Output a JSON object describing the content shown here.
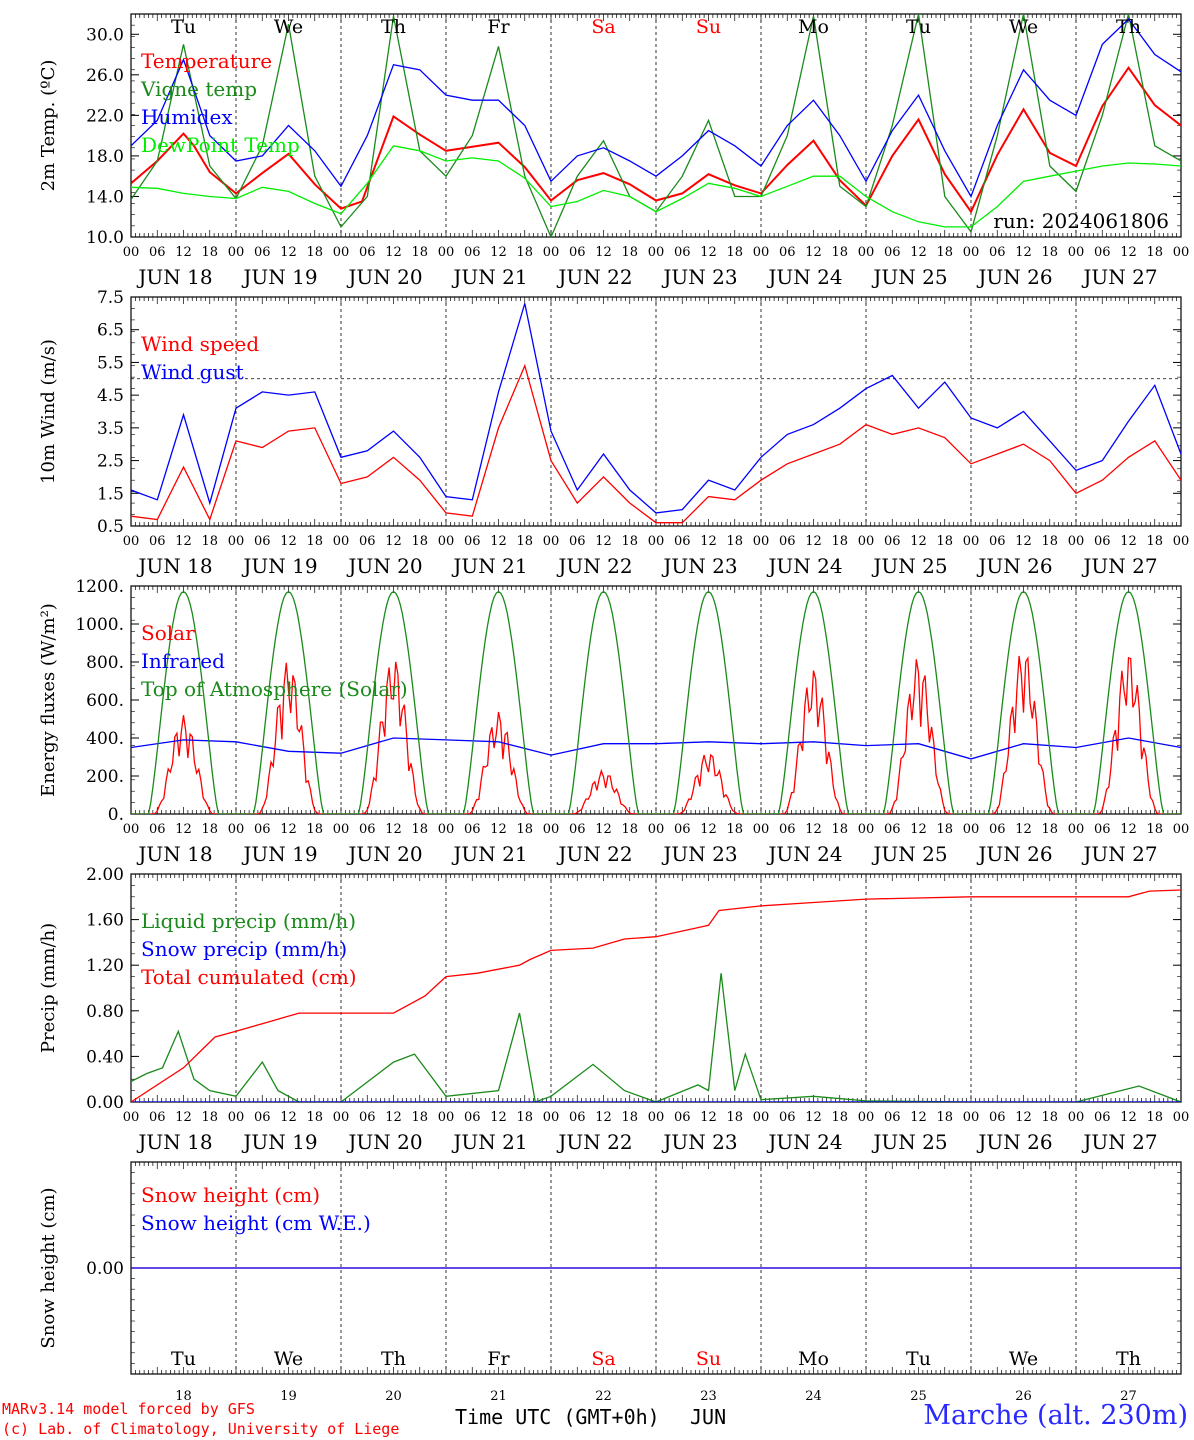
{
  "figure": {
    "footer": {
      "credit_line1": "MARv3.14 model forced by GFS",
      "credit_line2": "(c) Lab. of Climatology, University of Liege",
      "time_axis_label": "Time UTC (GMT+0h)",
      "month_label": "JUN",
      "station": "Marche (alt. 230m)"
    },
    "hour_ticks": [
      "00",
      "06",
      "12",
      "18"
    ],
    "final_tick": "00",
    "dates": [
      "JUN 18",
      "JUN 19",
      "JUN 20",
      "JUN 21",
      "JUN 22",
      "JUN 23",
      "JUN 24",
      "JUN 25",
      "JUN 26",
      "JUN 27"
    ],
    "day_numbers": [
      "18",
      "19",
      "20",
      "21",
      "22",
      "23",
      "24",
      "25",
      "26",
      "27"
    ],
    "weekdays": [
      {
        "label": "Tu",
        "color": "#000000"
      },
      {
        "label": "We",
        "color": "#000000"
      },
      {
        "label": "Th",
        "color": "#000000"
      },
      {
        "label": "Fr",
        "color": "#000000"
      },
      {
        "label": "Sa",
        "color": "#ff0000"
      },
      {
        "label": "Su",
        "color": "#ff0000"
      },
      {
        "label": "Mo",
        "color": "#000000"
      },
      {
        "label": "Tu",
        "color": "#000000"
      },
      {
        "label": "We",
        "color": "#000000"
      },
      {
        "label": "Th",
        "color": "#000000"
      }
    ]
  },
  "chart_data": [
    {
      "type": "line",
      "ylabel": "2m Temp. (ºC)",
      "ylim": [
        10.0,
        32.0
      ],
      "yticks": [
        "10.0",
        "14.0",
        "18.0",
        "22.0",
        "26.0",
        "30.0"
      ],
      "x_unit": "days since JUN 18 00 UTC",
      "xlim": [
        0,
        10
      ],
      "annotation": "run: 2024061806",
      "series": [
        {
          "name": "Temperature",
          "color": "#ff0000",
          "x": [
            0,
            0.25,
            0.5,
            0.6,
            0.75,
            1.0,
            1.25,
            1.5,
            1.75,
            2.0,
            2.2,
            2.5,
            2.75,
            3.0,
            3.25,
            3.5,
            3.75,
            4.0,
            4.25,
            4.5,
            4.75,
            5.0,
            5.25,
            5.5,
            5.75,
            6.0,
            6.25,
            6.5,
            6.75,
            7.0,
            7.25,
            7.5,
            7.75,
            8.0,
            8.25,
            8.5,
            8.75,
            9.0,
            9.25,
            9.5,
            9.75,
            10.0
          ],
          "y": [
            15.3,
            17.5,
            20.2,
            19.0,
            16.4,
            14.3,
            16.3,
            18.2,
            15.2,
            12.8,
            13.5,
            21.9,
            20.1,
            18.5,
            18.9,
            19.3,
            16.9,
            13.6,
            15.6,
            16.3,
            15.2,
            13.6,
            14.3,
            16.2,
            15.1,
            14.3,
            17.1,
            19.5,
            15.6,
            13.1,
            18.0,
            21.6,
            16.2,
            12.5,
            18.1,
            22.6,
            18.3,
            17.0,
            22.9,
            26.7,
            23.0,
            21.0
          ]
        },
        {
          "name": "Vigne temp",
          "color": "#1a8a1a",
          "x": [
            0,
            0.25,
            0.5,
            0.75,
            1.0,
            1.25,
            1.5,
            1.75,
            2.0,
            2.25,
            2.5,
            2.75,
            3.0,
            3.25,
            3.5,
            3.75,
            4.0,
            4.25,
            4.5,
            4.75,
            5.0,
            5.25,
            5.5,
            5.75,
            6.0,
            6.25,
            6.5,
            6.75,
            7.0,
            7.25,
            7.5,
            7.75,
            8.0,
            8.25,
            8.5,
            8.75,
            9.0,
            9.25,
            9.5,
            9.75,
            10.0
          ],
          "y": [
            13.7,
            17.5,
            29.0,
            17.0,
            13.8,
            19.0,
            31.0,
            16.0,
            11.0,
            14.0,
            31.8,
            18.5,
            16.0,
            20.0,
            28.8,
            16.0,
            10.0,
            16.0,
            19.5,
            14.0,
            12.5,
            16.0,
            21.5,
            14.0,
            14.0,
            20.0,
            31.8,
            15.0,
            13.0,
            21.0,
            32.0,
            14.0,
            10.5,
            20.0,
            32.0,
            17.0,
            14.5,
            22.0,
            32.0,
            19.0,
            17.5
          ]
        },
        {
          "name": "Humidex",
          "color": "#0000ff",
          "x": [
            0,
            0.25,
            0.5,
            0.75,
            1.0,
            1.25,
            1.5,
            1.75,
            2.0,
            2.25,
            2.5,
            2.75,
            3.0,
            3.25,
            3.5,
            3.75,
            4.0,
            4.25,
            4.5,
            4.75,
            5.0,
            5.25,
            5.5,
            5.75,
            6.0,
            6.25,
            6.5,
            6.75,
            7.0,
            7.25,
            7.5,
            7.75,
            8.0,
            8.25,
            8.5,
            8.75,
            9.0,
            9.25,
            9.5,
            9.75,
            10.0
          ],
          "y": [
            19.0,
            21.5,
            27.5,
            20.0,
            17.5,
            18.0,
            21.0,
            18.5,
            15.0,
            20.0,
            27.0,
            26.5,
            24.0,
            23.5,
            23.5,
            21.0,
            15.5,
            18.0,
            18.8,
            17.5,
            16.0,
            18.0,
            20.5,
            19.0,
            17.0,
            21.0,
            23.5,
            20.0,
            15.5,
            20.5,
            24.0,
            18.5,
            14.0,
            21.0,
            26.5,
            23.5,
            22.0,
            29.0,
            31.5,
            28.0,
            26.3
          ]
        },
        {
          "name": "DewPoint Temp",
          "color": "#00ee00",
          "x": [
            0,
            0.25,
            0.5,
            0.75,
            1.0,
            1.25,
            1.5,
            1.75,
            2.0,
            2.25,
            2.5,
            2.75,
            3.0,
            3.25,
            3.5,
            3.75,
            4.0,
            4.25,
            4.5,
            4.75,
            5.0,
            5.25,
            5.5,
            5.75,
            6.0,
            6.25,
            6.5,
            6.75,
            7.0,
            7.25,
            7.5,
            7.75,
            8.0,
            8.25,
            8.5,
            8.75,
            9.0,
            9.25,
            9.5,
            9.75,
            10.0
          ],
          "y": [
            14.9,
            14.8,
            14.3,
            14.0,
            13.8,
            14.9,
            14.5,
            13.3,
            12.3,
            15.3,
            19.0,
            18.5,
            17.5,
            17.8,
            17.5,
            15.8,
            13.0,
            13.5,
            14.6,
            14.0,
            12.5,
            13.8,
            15.3,
            14.8,
            14.0,
            15.0,
            16.0,
            16.0,
            14.0,
            12.5,
            11.5,
            11.0,
            11.0,
            13.0,
            15.5,
            16.0,
            16.5,
            17.0,
            17.3,
            17.2,
            17.0
          ]
        }
      ]
    },
    {
      "type": "line",
      "ylabel": "10m Wind (m/s)",
      "ylim": [
        0.5,
        7.5
      ],
      "yticks": [
        "0.5",
        "1.5",
        "2.5",
        "3.5",
        "4.5",
        "5.5",
        "6.5",
        "7.5"
      ],
      "reference_line": 5.0,
      "series": [
        {
          "name": "Wind speed",
          "color": "#ff0000",
          "x": [
            0,
            0.25,
            0.5,
            0.75,
            1.0,
            1.25,
            1.5,
            1.75,
            2.0,
            2.25,
            2.5,
            2.75,
            3.0,
            3.25,
            3.5,
            3.75,
            4.0,
            4.25,
            4.5,
            4.75,
            5.0,
            5.25,
            5.5,
            5.75,
            6.0,
            6.25,
            6.5,
            6.75,
            7.0,
            7.25,
            7.5,
            7.75,
            8.0,
            8.25,
            8.5,
            8.75,
            9.0,
            9.25,
            9.5,
            9.75,
            10.0
          ],
          "y": [
            0.8,
            0.7,
            2.3,
            0.7,
            3.1,
            2.9,
            3.4,
            3.5,
            1.8,
            2.0,
            2.6,
            1.9,
            0.9,
            0.8,
            3.5,
            5.4,
            2.5,
            1.2,
            2.0,
            1.2,
            0.6,
            0.6,
            1.4,
            1.3,
            1.9,
            2.4,
            2.7,
            3.0,
            3.6,
            3.3,
            3.5,
            3.2,
            2.4,
            2.7,
            3.0,
            2.5,
            1.5,
            1.9,
            2.6,
            3.1,
            1.9
          ]
        },
        {
          "name": "Wind gust",
          "color": "#0000ff",
          "x": [
            0,
            0.25,
            0.5,
            0.75,
            1.0,
            1.25,
            1.5,
            1.75,
            2.0,
            2.25,
            2.5,
            2.75,
            3.0,
            3.25,
            3.5,
            3.75,
            4.0,
            4.25,
            4.5,
            4.75,
            5.0,
            5.25,
            5.5,
            5.75,
            6.0,
            6.25,
            6.5,
            6.75,
            7.0,
            7.25,
            7.5,
            7.75,
            8.0,
            8.25,
            8.5,
            8.75,
            9.0,
            9.25,
            9.5,
            9.75,
            10.0
          ],
          "y": [
            1.6,
            1.3,
            3.9,
            1.2,
            4.1,
            4.6,
            4.5,
            4.6,
            2.6,
            2.8,
            3.4,
            2.6,
            1.4,
            1.3,
            4.6,
            7.3,
            3.4,
            1.6,
            2.7,
            1.6,
            0.9,
            1.0,
            1.9,
            1.6,
            2.6,
            3.3,
            3.6,
            4.1,
            4.7,
            5.1,
            4.1,
            4.9,
            3.8,
            3.5,
            4.0,
            3.1,
            2.2,
            2.5,
            3.7,
            4.8,
            2.7
          ]
        }
      ]
    },
    {
      "type": "line",
      "ylabel": "Energy fluxes (W/m²)",
      "ylim": [
        0,
        1200
      ],
      "yticks": [
        "0.",
        "200.",
        "400.",
        "600.",
        "800.",
        "1000.",
        "1200."
      ],
      "series": [
        {
          "name": "Solar",
          "color": "#ff0000",
          "peaks": [
            {
              "day": 0,
              "peak": 520
            },
            {
              "day": 1,
              "peak": 810
            },
            {
              "day": 2,
              "peak": 830
            },
            {
              "day": 3,
              "peak": 540
            },
            {
              "day": 4,
              "peak": 230
            },
            {
              "day": 5,
              "peak": 330
            },
            {
              "day": 6,
              "peak": 770
            },
            {
              "day": 7,
              "peak": 830
            },
            {
              "day": 8,
              "peak": 880
            },
            {
              "day": 9,
              "peak": 860
            }
          ]
        },
        {
          "name": "Infrared",
          "color": "#0000ff",
          "x": [
            0,
            0.5,
            1.0,
            1.5,
            2.0,
            2.5,
            3.0,
            3.5,
            4.0,
            4.5,
            5.0,
            5.5,
            6.0,
            6.5,
            7.0,
            7.5,
            8.0,
            8.5,
            9.0,
            9.5,
            10.0
          ],
          "y": [
            350,
            390,
            380,
            330,
            320,
            400,
            390,
            380,
            310,
            370,
            370,
            380,
            370,
            380,
            360,
            370,
            290,
            370,
            350,
            400,
            350
          ]
        },
        {
          "name": "Top of Atmosphere (Solar)",
          "color": "#1a8a1a",
          "daily_peak": 1170
        }
      ]
    },
    {
      "type": "line",
      "ylabel": "Precip (mm/h)",
      "ylim": [
        0.0,
        2.0
      ],
      "yticks": [
        "0.00",
        "0.40",
        "0.80",
        "1.20",
        "1.60",
        "2.00"
      ],
      "series": [
        {
          "name": "Liquid precip (mm/h)",
          "color": "#1a8a1a",
          "x": [
            0,
            0.15,
            0.3,
            0.45,
            0.6,
            0.75,
            1.0,
            1.25,
            1.4,
            1.6,
            2.0,
            2.5,
            2.7,
            3.0,
            3.5,
            3.7,
            3.85,
            4.0,
            4.4,
            4.7,
            5.0,
            5.4,
            5.5,
            5.62,
            5.75,
            5.85,
            6.0,
            6.5,
            7.0,
            8.0,
            9.0,
            9.6,
            10.0
          ],
          "y": [
            0.18,
            0.25,
            0.3,
            0.62,
            0.2,
            0.1,
            0.05,
            0.35,
            0.1,
            0.0,
            0.0,
            0.35,
            0.42,
            0.05,
            0.1,
            0.78,
            0.0,
            0.05,
            0.33,
            0.1,
            0.0,
            0.15,
            0.1,
            1.13,
            0.1,
            0.42,
            0.02,
            0.05,
            0.01,
            0.0,
            0.0,
            0.14,
            0.0
          ]
        },
        {
          "name": "Snow precip (mm/h)",
          "color": "#0000ff",
          "x": [
            0,
            10
          ],
          "y": [
            0,
            0
          ]
        },
        {
          "name": "Total cumulated (cm)",
          "color": "#ff0000",
          "x": [
            0,
            0.5,
            0.8,
            1.0,
            1.3,
            1.6,
            2.0,
            2.5,
            2.8,
            3.0,
            3.3,
            3.7,
            3.8,
            4.0,
            4.4,
            4.7,
            5.0,
            5.4,
            5.5,
            5.6,
            6.0,
            6.5,
            7.0,
            8.0,
            9.0,
            9.5,
            9.7,
            10.0
          ],
          "y": [
            0.0,
            0.3,
            0.57,
            0.62,
            0.7,
            0.78,
            0.78,
            0.78,
            0.93,
            1.1,
            1.13,
            1.2,
            1.25,
            1.33,
            1.35,
            1.43,
            1.45,
            1.53,
            1.55,
            1.68,
            1.72,
            1.75,
            1.78,
            1.8,
            1.8,
            1.8,
            1.85,
            1.86
          ]
        }
      ]
    },
    {
      "type": "line",
      "ylabel": "Snow height (cm)",
      "ylim": [
        -1,
        1
      ],
      "yticks": [
        "0.00"
      ],
      "series": [
        {
          "name": "Snow height (cm)",
          "color": "#ff0000",
          "x": [
            0,
            10
          ],
          "y": [
            0,
            0
          ]
        },
        {
          "name": "Snow height (cm W.E.)",
          "color": "#0000ff",
          "x": [
            0,
            10
          ],
          "y": [
            0,
            0
          ]
        }
      ]
    }
  ]
}
